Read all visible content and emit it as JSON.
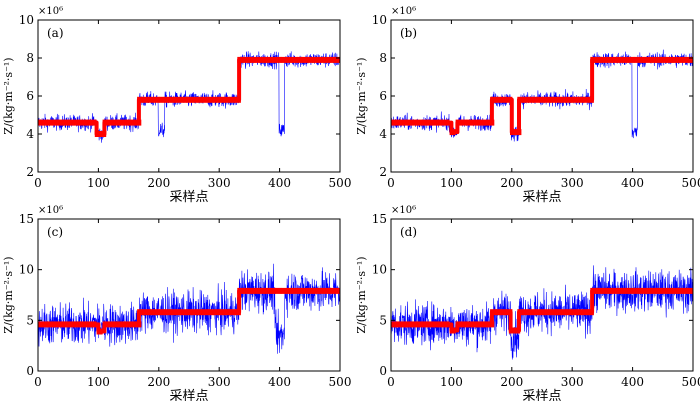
{
  "colors": {
    "raw_series": "#0000ff",
    "step_series": "#ff0000",
    "axes": "#000000"
  },
  "chart_data": [
    {
      "type": "line",
      "panel_label": "(a)",
      "xlabel": "采样点",
      "ylabel": "Z/(kg·m⁻²·s⁻¹)",
      "y_exponent": "×10⁶",
      "xlim": [
        0,
        500
      ],
      "ylim": [
        2,
        10
      ],
      "xticks": [
        "0",
        "100",
        "200",
        "300",
        "400",
        "500"
      ],
      "yticks": [
        "2",
        "4",
        "6",
        "8",
        "10"
      ],
      "grid": false,
      "noise_amplitude": 0.4,
      "raw_segments": [
        {
          "from": 0,
          "to": 167,
          "mean": 4.6
        },
        {
          "from": 167,
          "to": 333,
          "mean": 5.8
        },
        {
          "from": 333,
          "to": 500,
          "mean": 7.9
        }
      ],
      "raw_dips": [
        {
          "from": 98,
          "to": 110,
          "value": 4.0
        },
        {
          "from": 199,
          "to": 210,
          "value": 4.2
        },
        {
          "from": 399,
          "to": 408,
          "value": 4.2
        }
      ],
      "step_estimate": [
        {
          "from": 0,
          "to": 97,
          "value": 4.6
        },
        {
          "from": 97,
          "to": 110,
          "value": 4.0
        },
        {
          "from": 110,
          "to": 167,
          "value": 4.6
        },
        {
          "from": 167,
          "to": 333,
          "value": 5.8
        },
        {
          "from": 333,
          "to": 500,
          "value": 7.9
        }
      ]
    },
    {
      "type": "line",
      "panel_label": "(b)",
      "xlabel": "采样点",
      "ylabel": "Z/(kg·m⁻²·s⁻¹)",
      "y_exponent": "×10⁶",
      "xlim": [
        0,
        500
      ],
      "ylim": [
        2,
        10
      ],
      "xticks": [
        "0",
        "100",
        "200",
        "300",
        "400",
        "500"
      ],
      "yticks": [
        "2",
        "4",
        "6",
        "8",
        "10"
      ],
      "grid": false,
      "noise_amplitude": 0.4,
      "raw_segments": [
        {
          "from": 0,
          "to": 167,
          "mean": 4.6
        },
        {
          "from": 167,
          "to": 333,
          "mean": 5.8
        },
        {
          "from": 333,
          "to": 500,
          "mean": 7.9
        }
      ],
      "raw_dips": [
        {
          "from": 100,
          "to": 110,
          "value": 4.1
        },
        {
          "from": 199,
          "to": 212,
          "value": 4.0
        },
        {
          "from": 399,
          "to": 408,
          "value": 4.1
        }
      ],
      "step_estimate": [
        {
          "from": 0,
          "to": 100,
          "value": 4.6
        },
        {
          "from": 100,
          "to": 110,
          "value": 4.1
        },
        {
          "from": 110,
          "to": 167,
          "value": 4.6
        },
        {
          "from": 167,
          "to": 200,
          "value": 5.8
        },
        {
          "from": 200,
          "to": 212,
          "value": 4.1
        },
        {
          "from": 212,
          "to": 333,
          "value": 5.8
        },
        {
          "from": 333,
          "to": 500,
          "value": 7.9
        }
      ]
    },
    {
      "type": "line",
      "panel_label": "(c)",
      "xlabel": "采样点",
      "ylabel": "Z/(kg·m⁻²·s⁻¹)",
      "y_exponent": "×10⁶",
      "xlim": [
        0,
        500
      ],
      "ylim": [
        0,
        15
      ],
      "xticks": [
        "0",
        "100",
        "200",
        "300",
        "400",
        "500"
      ],
      "yticks": [
        "0",
        "5",
        "10",
        "15"
      ],
      "grid": false,
      "noise_amplitude": 2.0,
      "raw_segments": [
        {
          "from": 0,
          "to": 167,
          "mean": 4.6
        },
        {
          "from": 167,
          "to": 333,
          "mean": 5.8
        },
        {
          "from": 333,
          "to": 500,
          "mean": 7.9
        }
      ],
      "raw_dips": [
        {
          "from": 392,
          "to": 408,
          "value": 3.5
        }
      ],
      "step_estimate": [
        {
          "from": 0,
          "to": 100,
          "value": 4.6
        },
        {
          "from": 100,
          "to": 110,
          "value": 3.9
        },
        {
          "from": 110,
          "to": 167,
          "value": 4.6
        },
        {
          "from": 167,
          "to": 333,
          "value": 5.8
        },
        {
          "from": 333,
          "to": 500,
          "value": 7.9
        }
      ]
    },
    {
      "type": "line",
      "panel_label": "(d)",
      "xlabel": "采样点",
      "ylabel": "Z/(kg·m⁻²·s⁻¹)",
      "y_exponent": "×10⁶",
      "xlim": [
        0,
        500
      ],
      "ylim": [
        0,
        15
      ],
      "xticks": [
        "0",
        "100",
        "200",
        "300",
        "400",
        "500"
      ],
      "yticks": [
        "0",
        "5",
        "10",
        "15"
      ],
      "grid": false,
      "noise_amplitude": 2.0,
      "raw_segments": [
        {
          "from": 0,
          "to": 167,
          "mean": 4.6
        },
        {
          "from": 167,
          "to": 333,
          "mean": 5.8
        },
        {
          "from": 333,
          "to": 500,
          "mean": 7.9
        }
      ],
      "raw_dips": [
        {
          "from": 198,
          "to": 212,
          "value": 3.5
        }
      ],
      "step_estimate": [
        {
          "from": 0,
          "to": 100,
          "value": 4.6
        },
        {
          "from": 100,
          "to": 110,
          "value": 4.0
        },
        {
          "from": 110,
          "to": 167,
          "value": 4.6
        },
        {
          "from": 167,
          "to": 198,
          "value": 5.8
        },
        {
          "from": 198,
          "to": 212,
          "value": 4.0
        },
        {
          "from": 212,
          "to": 333,
          "value": 5.8
        },
        {
          "from": 333,
          "to": 500,
          "value": 7.9
        }
      ]
    }
  ]
}
